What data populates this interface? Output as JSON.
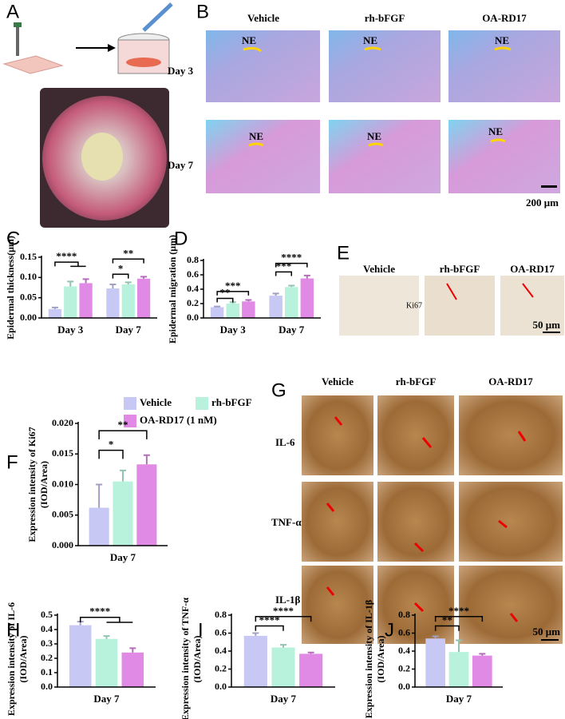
{
  "panels": {
    "A": {
      "letter": "A"
    },
    "B": {
      "letter": "B",
      "columns": [
        "Vehicle",
        "rh-bFGF",
        "OA-RD17"
      ],
      "rows": [
        "Day 3",
        "Day 7"
      ],
      "marker": "NE",
      "scale_bar": "200 μm"
    },
    "E": {
      "letter": "E",
      "columns": [
        "Vehicle",
        "rh-bFGF",
        "OA-RD17"
      ],
      "row": "Ki67",
      "scale_bar": "50 μm"
    },
    "G": {
      "letter": "G",
      "columns": [
        "Vehicle",
        "rh-bFGF",
        "OA-RD17"
      ],
      "rows": [
        "IL-6",
        "TNF-α",
        "IL-1β"
      ],
      "scale_bar": "50 μm"
    }
  },
  "legend": [
    {
      "name": "Vehicle",
      "color": "#c8c8f4"
    },
    {
      "name": "rh-bFGF",
      "color": "#b8f2dc"
    },
    {
      "name": "OA-RD17 (1 nM)",
      "color": "#e08ae6"
    }
  ],
  "chart_data": [
    {
      "type": "bar",
      "panel": "C",
      "ylabel": [
        "Epidermal thickness(μm)"
      ],
      "categories": [
        "Day 3",
        "Day 7"
      ],
      "series": [
        {
          "color": "#c8c8f4",
          "values": [
            0.022,
            0.073
          ],
          "errors": [
            0.004,
            0.01
          ]
        },
        {
          "color": "#b8f2dc",
          "values": [
            0.078,
            0.083
          ],
          "errors": [
            0.012,
            0.005
          ]
        },
        {
          "color": "#e08ae6",
          "values": [
            0.086,
            0.097
          ],
          "errors": [
            0.01,
            0.005
          ]
        }
      ],
      "ylim": [
        0,
        0.15
      ],
      "yticks": [
        {
          "value": 0,
          "label": "0.00"
        },
        {
          "value": 0.05,
          "label": "0.05"
        },
        {
          "value": 0.1,
          "label": "0.10"
        },
        {
          "value": 0.15,
          "label": "0.15"
        }
      ],
      "annotations": [
        "****",
        "**",
        "*"
      ]
    },
    {
      "type": "bar",
      "panel": "D",
      "ylabel": [
        "Epidermal migration (μm)"
      ],
      "categories": [
        "Day 3",
        "Day 7"
      ],
      "series": [
        {
          "color": "#c8c8f4",
          "values": [
            0.15,
            0.31
          ],
          "errors": [
            0.01,
            0.03
          ]
        },
        {
          "color": "#b8f2dc",
          "values": [
            0.2,
            0.43
          ],
          "errors": [
            0.02,
            0.02
          ]
        },
        {
          "color": "#e08ae6",
          "values": [
            0.23,
            0.55
          ],
          "errors": [
            0.02,
            0.04
          ]
        }
      ],
      "ylim": [
        0,
        0.8
      ],
      "yticks": [
        {
          "value": 0,
          "label": "0.0"
        },
        {
          "value": 0.2,
          "label": "0.2"
        },
        {
          "value": 0.4,
          "label": "0.4"
        },
        {
          "value": 0.6,
          "label": "0.6"
        },
        {
          "value": 0.8,
          "label": "0.8"
        }
      ],
      "annotations": [
        "***",
        "**",
        "****",
        "***"
      ]
    },
    {
      "type": "bar",
      "panel": "F",
      "ylabel": [
        "Expression intensity of Ki67",
        "(IOD/Area)"
      ],
      "categories": [
        "Day 7"
      ],
      "series": [
        {
          "color": "#c8c8f4",
          "values": [
            0.0062
          ],
          "errors": [
            0.0038
          ]
        },
        {
          "color": "#b8f2dc",
          "values": [
            0.0105
          ],
          "errors": [
            0.0018
          ]
        },
        {
          "color": "#e08ae6",
          "values": [
            0.0133
          ],
          "errors": [
            0.0015
          ]
        }
      ],
      "ylim": [
        0,
        0.02
      ],
      "yticks": [
        {
          "value": 0,
          "label": "0.000"
        },
        {
          "value": 0.005,
          "label": "0.005"
        },
        {
          "value": 0.01,
          "label": "0.010"
        },
        {
          "value": 0.015,
          "label": "0.015"
        },
        {
          "value": 0.02,
          "label": "0.020"
        }
      ],
      "annotations": [
        "*",
        "**"
      ]
    },
    {
      "type": "bar",
      "panel": "H",
      "ylabel": [
        "Expression intensity of IL-6",
        "(IOD/Area)"
      ],
      "categories": [
        "Day 7"
      ],
      "series": [
        {
          "color": "#c8c8f4",
          "values": [
            0.43
          ],
          "errors": [
            0.025
          ]
        },
        {
          "color": "#b8f2dc",
          "values": [
            0.335
          ],
          "errors": [
            0.02
          ]
        },
        {
          "color": "#e08ae6",
          "values": [
            0.24
          ],
          "errors": [
            0.03
          ]
        }
      ],
      "ylim": [
        0,
        0.5
      ],
      "yticks": [
        {
          "value": 0,
          "label": "0.0"
        },
        {
          "value": 0.1,
          "label": "0.1"
        },
        {
          "value": 0.2,
          "label": "0.2"
        },
        {
          "value": 0.3,
          "label": "0.3"
        },
        {
          "value": 0.4,
          "label": "0.4"
        },
        {
          "value": 0.5,
          "label": "0.5"
        }
      ],
      "annotations": [
        "****"
      ]
    },
    {
      "type": "bar",
      "panel": "I",
      "ylabel": [
        "Expression intensity of TNF-α",
        "(IOD/Area)"
      ],
      "categories": [
        "Day 7"
      ],
      "series": [
        {
          "color": "#c8c8f4",
          "values": [
            0.57
          ],
          "errors": [
            0.03
          ]
        },
        {
          "color": "#b8f2dc",
          "values": [
            0.44
          ],
          "errors": [
            0.03
          ]
        },
        {
          "color": "#e08ae6",
          "values": [
            0.37
          ],
          "errors": [
            0.015
          ]
        }
      ],
      "ylim": [
        0,
        0.8
      ],
      "yticks": [
        {
          "value": 0,
          "label": "0.0"
        },
        {
          "value": 0.2,
          "label": "0.2"
        },
        {
          "value": 0.4,
          "label": "0.4"
        },
        {
          "value": 0.6,
          "label": "0.6"
        },
        {
          "value": 0.8,
          "label": "0.8"
        }
      ],
      "annotations": [
        "****",
        "****"
      ]
    },
    {
      "type": "bar",
      "panel": "J",
      "ylabel": [
        "Expression intensity of IL-1β",
        "(IOD/Area)"
      ],
      "categories": [
        "Day 7"
      ],
      "series": [
        {
          "color": "#c8c8f4",
          "values": [
            0.54
          ],
          "errors": [
            0.025
          ]
        },
        {
          "color": "#b8f2dc",
          "values": [
            0.39
          ],
          "errors": [
            0.13
          ]
        },
        {
          "color": "#e08ae6",
          "values": [
            0.35
          ],
          "errors": [
            0.02
          ]
        }
      ],
      "ylim": [
        0,
        0.8
      ],
      "yticks": [
        {
          "value": 0,
          "label": "0.0"
        },
        {
          "value": 0.2,
          "label": "0.2"
        },
        {
          "value": 0.4,
          "label": "0.4"
        },
        {
          "value": 0.6,
          "label": "0.6"
        },
        {
          "value": 0.8,
          "label": "0.8"
        }
      ],
      "annotations": [
        "**",
        "****"
      ]
    }
  ]
}
